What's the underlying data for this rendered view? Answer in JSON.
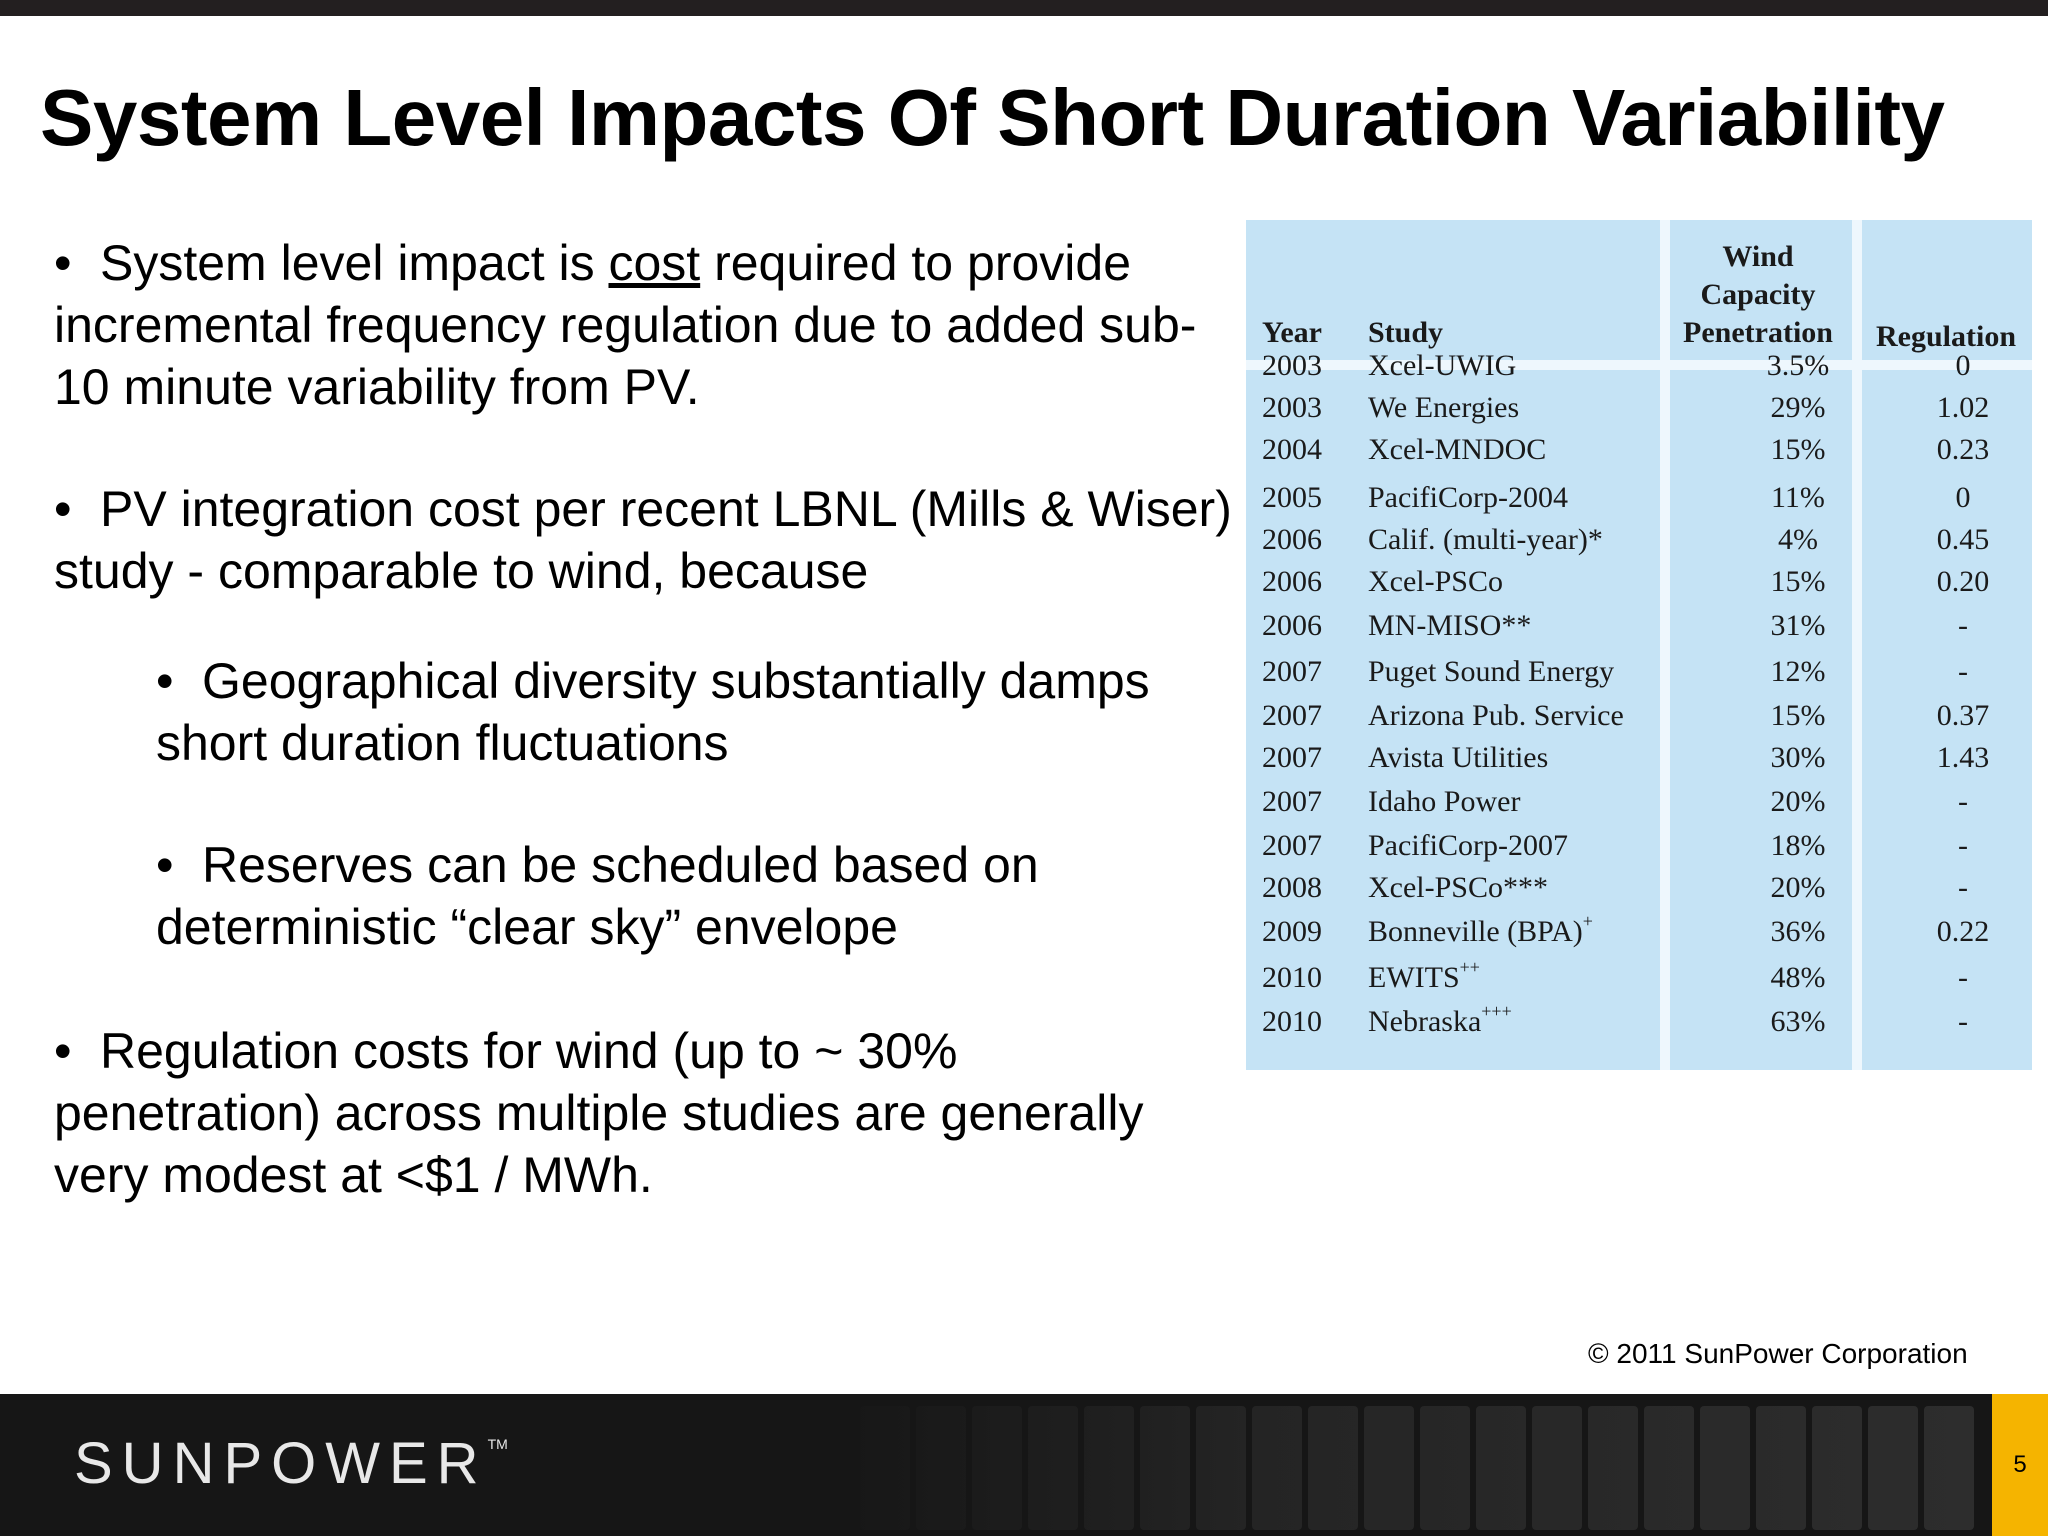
{
  "slide": {
    "title": "System Level Impacts Of Short Duration Variability",
    "bullet_char": "•",
    "bullets": {
      "b1": {
        "pre": "System level impact is ",
        "underlined": "cost",
        "post": " required to provide incremental frequency regulation due to added sub-10 minute variability from PV."
      },
      "b2": "PV integration cost per recent LBNL (Mills & Wiser) study - comparable to wind, because",
      "b2a": "Geographical diversity substantially damps short duration fluctuations",
      "b2b": "Reserves can be scheduled based on deterministic “clear sky” envelope",
      "b3": "Regulation costs for wind (up to ~ 30% penetration) across multiple studies are generally very modest at <$1 / MWh."
    }
  },
  "table": {
    "headers": {
      "year": "Year",
      "study": "Study",
      "penetration": [
        "Wind",
        "Capacity",
        "Penetration"
      ],
      "regulation": "Regulation"
    },
    "rows": [
      {
        "year": "2003",
        "study": "Xcel-UWIG",
        "mark": "",
        "penetration": "3.5%",
        "regulation": "0"
      },
      {
        "year": "2003",
        "study": "We Energies",
        "mark": "",
        "penetration": "29%",
        "regulation": "1.02"
      },
      {
        "year": "2004",
        "study": "Xcel-MNDOC",
        "mark": "",
        "penetration": "15%",
        "regulation": "0.23"
      },
      {
        "year": "2005",
        "study": "PacifiCorp-2004",
        "mark": "",
        "penetration": "11%",
        "regulation": "0"
      },
      {
        "year": "2006",
        "study": "Calif. (multi-year)*",
        "mark": "",
        "penetration": "4%",
        "regulation": "0.45"
      },
      {
        "year": "2006",
        "study": "Xcel-PSCo",
        "mark": "",
        "penetration": "15%",
        "regulation": "0.20"
      },
      {
        "year": "2006",
        "study": "MN-MISO**",
        "mark": "",
        "penetration": "31%",
        "regulation": "-"
      },
      {
        "year": "2007",
        "study": "Puget Sound Energy",
        "mark": "",
        "penetration": "12%",
        "regulation": "-"
      },
      {
        "year": "2007",
        "study": "Arizona Pub. Service",
        "mark": "",
        "penetration": "15%",
        "regulation": "0.37"
      },
      {
        "year": "2007",
        "study": "Avista Utilities",
        "mark": "",
        "penetration": "30%",
        "regulation": "1.43"
      },
      {
        "year": "2007",
        "study": "Idaho Power",
        "mark": "",
        "penetration": "20%",
        "regulation": "-"
      },
      {
        "year": "2007",
        "study": "PacifiCorp-2007",
        "mark": "",
        "penetration": "18%",
        "regulation": "-"
      },
      {
        "year": "2008",
        "study": "Xcel-PSCo***",
        "mark": "",
        "penetration": "20%",
        "regulation": "-"
      },
      {
        "year": "2009",
        "study": "Bonneville (BPA)",
        "mark": "+",
        "penetration": "36%",
        "regulation": "0.22"
      },
      {
        "year": "2010",
        "study": "EWITS",
        "mark": "++",
        "penetration": "48%",
        "regulation": "-"
      },
      {
        "year": "2010",
        "study": "Nebraska",
        "mark": "+++",
        "penetration": "63%",
        "regulation": "-"
      }
    ]
  },
  "footer": {
    "copyright": "© 2011 SunPower Corporation",
    "logo_text": "SUNPOWER",
    "logo_tm": "TM",
    "page_number": "5",
    "accent_color": "#f5b400"
  }
}
